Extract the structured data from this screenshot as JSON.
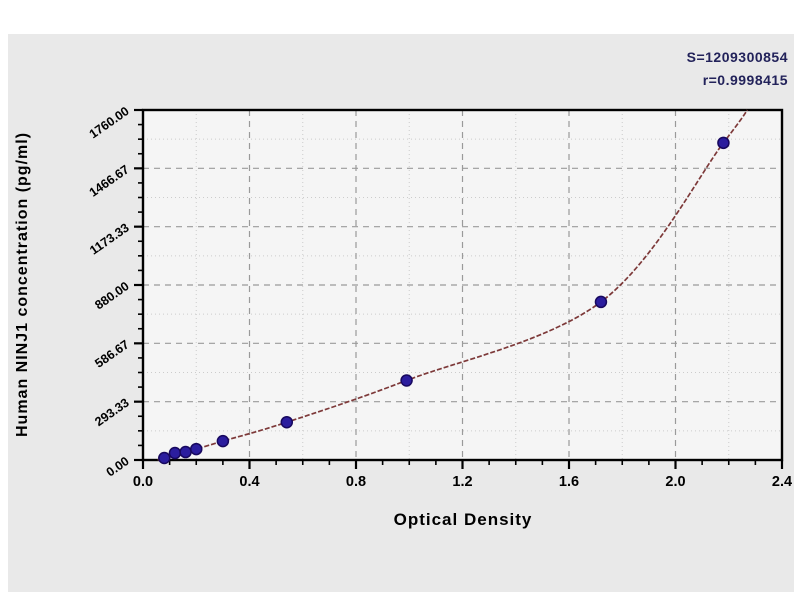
{
  "figure": {
    "stats": {
      "s": "S=1209300854",
      "r": "r=0.9998415"
    },
    "colors": {
      "panel_bg": "#e9e9e9",
      "plot_bg": "#f5f5f5",
      "frame": "#000000",
      "major_grid": "#9a9a9a",
      "minor_grid": "#cccccc",
      "curve": "#7d3939",
      "point_fill": "#2b1d9e",
      "point_stroke": "#17085e",
      "stats_text": "#22225a"
    }
  },
  "chart_data": {
    "type": "scatter",
    "title": "",
    "xlabel": "Optical Density",
    "ylabel": "Human NINJ1 concentration (pg/ml)",
    "xlim": [
      0,
      2.4
    ],
    "ylim": [
      0,
      1760
    ],
    "x_tick_values": [
      0,
      0.4,
      0.8,
      1.2,
      1.6,
      2.0,
      2.4
    ],
    "x_tick_labels": [
      "0.0",
      "0.4",
      "0.8",
      "1.2",
      "1.6",
      "2.0",
      "2.4"
    ],
    "x_minor_step": 0.1,
    "y_tick_values": [
      0,
      293.33,
      586.67,
      880,
      1173.33,
      1466.67,
      1760
    ],
    "y_tick_labels": [
      "0.00",
      "293.33",
      "586.67",
      "880.00",
      "1173.33",
      "1466.67",
      "1760.00"
    ],
    "y_minor_step": 73.333,
    "grid": "dashed gray lines at major ticks, faint dotted at interval midpoints",
    "legend": "none",
    "series_note": "x = optical density, y = concentration (pg/ml)",
    "points": [
      [
        0.08,
        10
      ],
      [
        0.12,
        35
      ],
      [
        0.16,
        40
      ],
      [
        0.2,
        55
      ],
      [
        0.3,
        95
      ],
      [
        0.54,
        190
      ],
      [
        0.99,
        400
      ],
      [
        1.72,
        795
      ],
      [
        2.18,
        1595
      ]
    ],
    "curve_start": [
      0.055,
      0
    ],
    "curve_end": [
      2.27,
      1760
    ]
  }
}
